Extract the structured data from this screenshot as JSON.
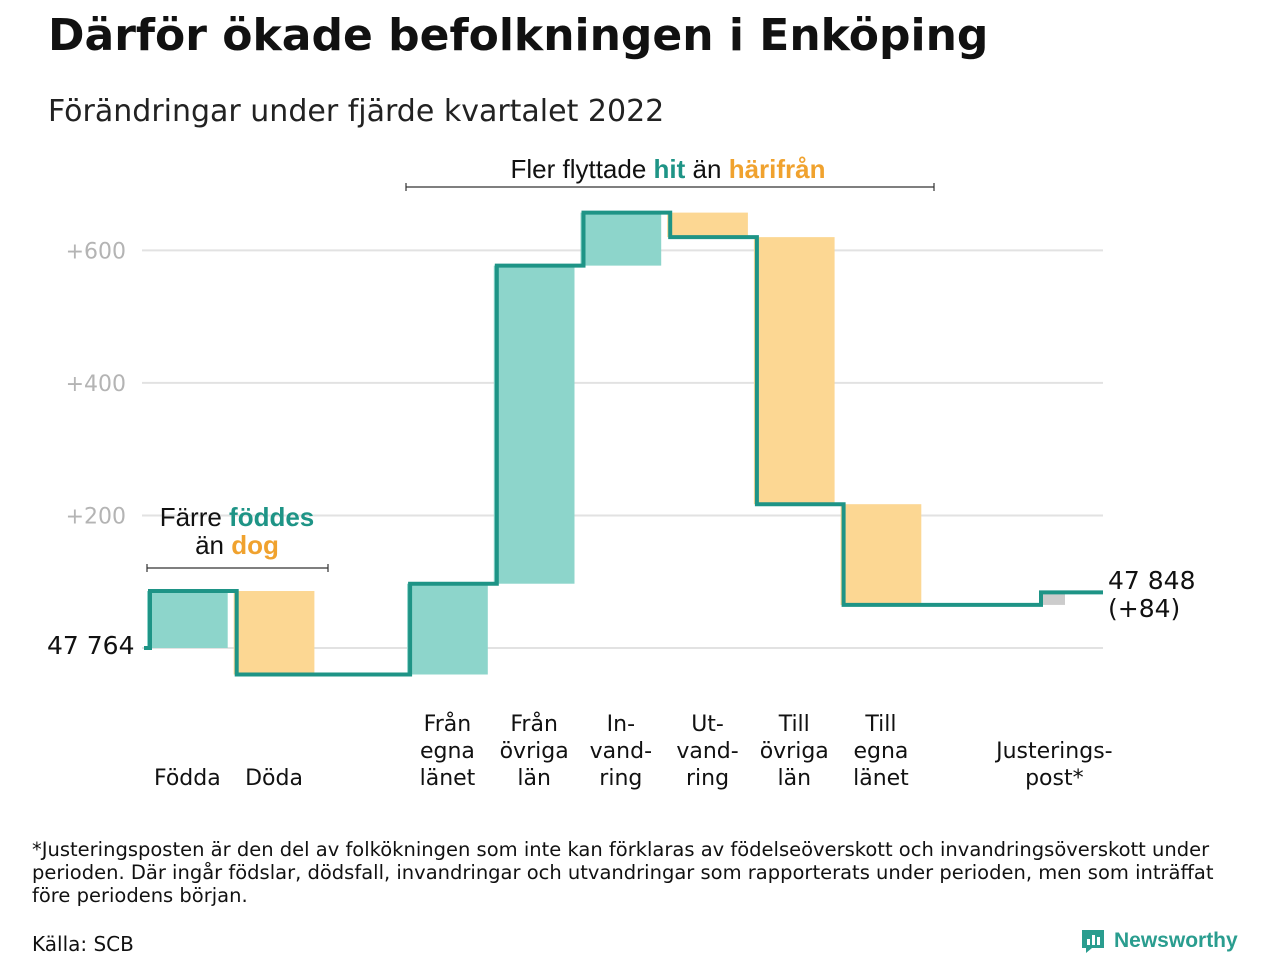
{
  "header": {
    "title": "Därför ökade befolkningen i Enköping",
    "subtitle": "Förändringar under fjärde kvartalet 2022"
  },
  "annotations": {
    "birth_group": {
      "line1_before": "Färre ",
      "line1_highlight": "föddes",
      "line2_before": "än ",
      "line2_highlight": "dog"
    },
    "migration_group": {
      "before": "Fler flyttade ",
      "highlight1": "hit",
      "middle": " än ",
      "highlight2": "härifrån"
    }
  },
  "chart_data": {
    "type": "waterfall",
    "start_value": 47764,
    "start_label": "47 764",
    "end_label": "47 848",
    "end_change_label": "(+84)",
    "y_ticks": [
      {
        "value": 200,
        "label": "+200"
      },
      {
        "value": 400,
        "label": "+400"
      },
      {
        "value": 600,
        "label": "+600"
      }
    ],
    "ylim": [
      -50,
      680
    ],
    "steps": [
      {
        "label_lines": [
          "Födda"
        ],
        "from": 0,
        "to": 86,
        "kind": "increase"
      },
      {
        "label_lines": [
          "Döda"
        ],
        "from": 86,
        "to": -40,
        "kind": "decrease"
      },
      {
        "label_lines": [],
        "from": -40,
        "to": -40,
        "kind": "none"
      },
      {
        "label_lines": [
          "Från",
          "egna",
          "länet"
        ],
        "from": -40,
        "to": 97,
        "kind": "increase"
      },
      {
        "label_lines": [
          "Från",
          "övriga",
          "län"
        ],
        "from": 97,
        "to": 577,
        "kind": "increase"
      },
      {
        "label_lines": [
          "In-",
          "vand-",
          "ring"
        ],
        "from": 577,
        "to": 657,
        "kind": "increase"
      },
      {
        "label_lines": [
          "Ut-",
          "vand-",
          "ring"
        ],
        "from": 657,
        "to": 620,
        "kind": "decrease"
      },
      {
        "label_lines": [
          "Till",
          "övriga",
          "län"
        ],
        "from": 620,
        "to": 217,
        "kind": "decrease"
      },
      {
        "label_lines": [
          "Till",
          "egna",
          "länet"
        ],
        "from": 217,
        "to": 65,
        "kind": "decrease"
      },
      {
        "label_lines": [],
        "from": 65,
        "to": 65,
        "kind": "none"
      },
      {
        "label_lines": [
          "Justerings-",
          "post*"
        ],
        "from": 65,
        "to": 84,
        "kind": "adjustment"
      }
    ]
  },
  "colors": {
    "increase": "#8dd5cb",
    "decrease": "#fcd793",
    "adjustment": "#cccccc",
    "line": "#1e9486",
    "grid": "#e2e2e2",
    "highlight_increase": "#1e9486",
    "highlight_decrease": "#f0a22e"
  },
  "footer": {
    "footnote": "*Justeringsposten är den del av folkökningen som inte kan förklaras av födelseöverskott och invandringsöverskott under perioden. Där ingår födslar, dödsfall, invandringar och utvandringar som rapporterats under perioden, men som inträffat före periodens början.",
    "source": "Källa: SCB",
    "brand": "Newsworthy",
    "brand_icon": "newsworthy-logo-icon"
  }
}
